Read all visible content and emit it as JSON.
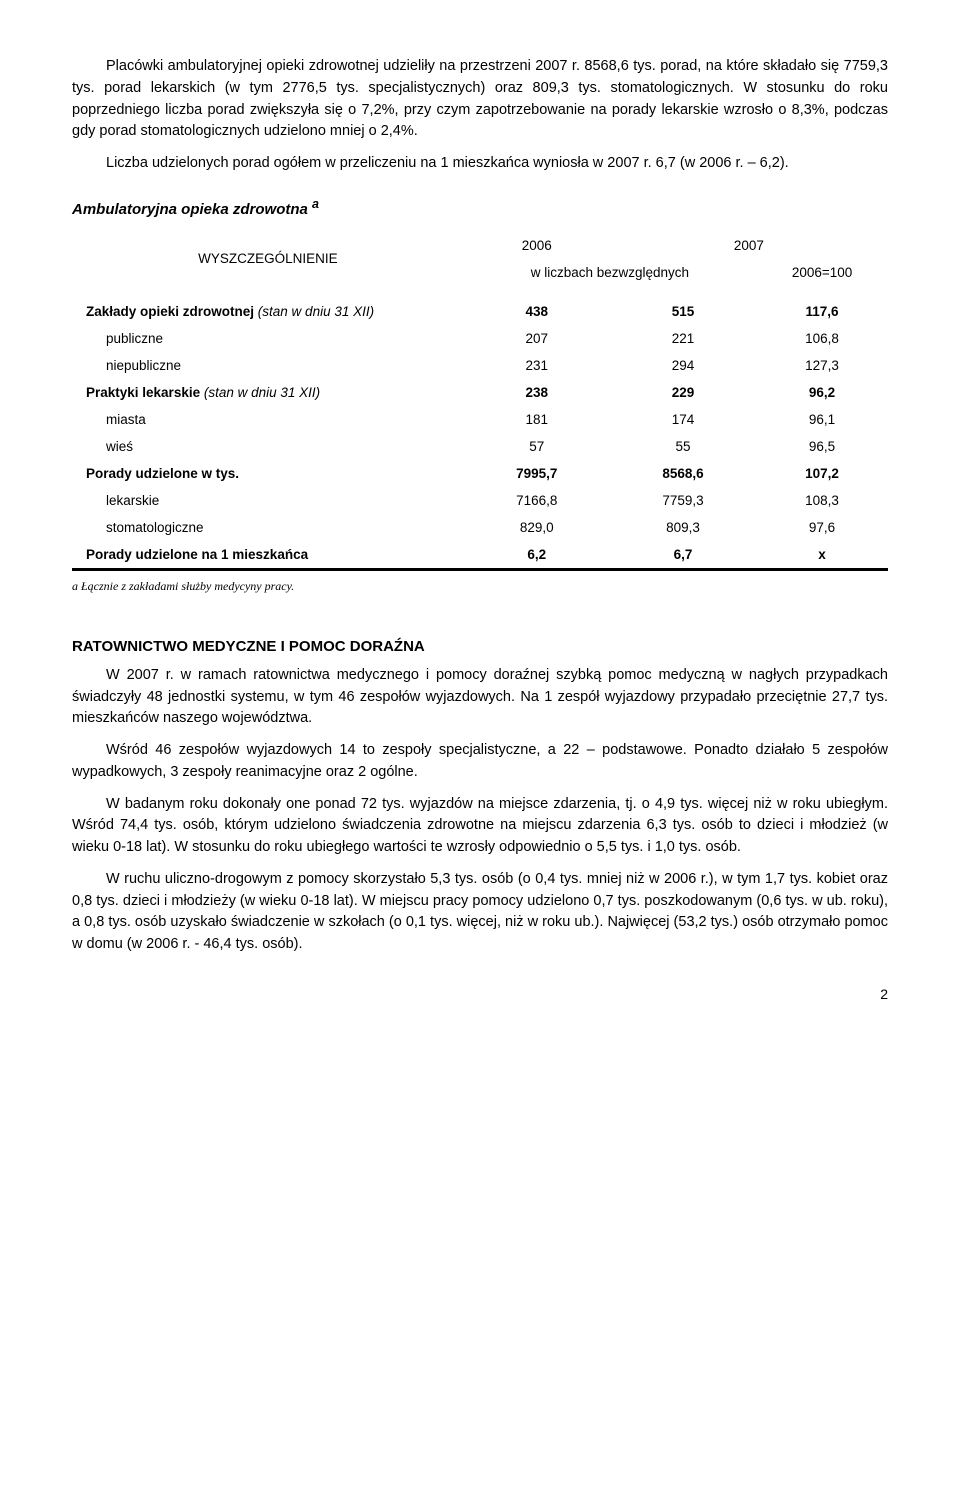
{
  "paragraphs_top": [
    "Placówki ambulatoryjnej opieki zdrowotnej udzieliły na przestrzeni 2007 r. 8568,6 tys. porad, na które składało się 7759,3 tys. porad lekarskich (w tym 2776,5 tys. specjalistycznych) oraz 809,3 tys. stomatologicznych. W stosunku do roku poprzedniego liczba porad zwiększyła się o 7,2%, przy czym zapotrzebowanie na porady lekarskie wzrosło o 8,3%, podczas gdy porad stomatologicznych udzielono mniej o 2,4%.",
    "Liczba udzielonych porad ogółem w przeliczeniu na 1 mieszkańca wyniosła w 2007 r. 6,7 (w 2006 r. – 6,2)."
  ],
  "table_section_title": "Ambulatoryjna opieka zdrowotna ",
  "table_superscript": "a",
  "table": {
    "header_col0": "WYSZCZEGÓLNIENIE",
    "header_years": [
      "2006",
      "2007"
    ],
    "header_sub_left": "w liczbach bezwzględnych",
    "header_sub_right": "2006=100",
    "rows": [
      {
        "label": "Zakłady opieki zdrowotnej (stan w dniu 31 XII)",
        "v": [
          "438",
          "515",
          "117,6"
        ],
        "bold": true,
        "italic_suffix": "(stan w dniu 31 XII)",
        "label_prefix": "Zakłady opieki zdrowotnej "
      },
      {
        "label": "publiczne",
        "v": [
          "207",
          "221",
          "106,8"
        ],
        "indent": 1
      },
      {
        "label": "niepubliczne",
        "v": [
          "231",
          "294",
          "127,3"
        ],
        "indent": 1
      },
      {
        "label": "Praktyki lekarskie (stan w dniu 31 XII)",
        "v": [
          "238",
          "229",
          "96,2"
        ],
        "bold": true,
        "italic_suffix": "(stan w dniu 31 XII)",
        "label_prefix": "Praktyki lekarskie "
      },
      {
        "label": "miasta",
        "v": [
          "181",
          "174",
          "96,1"
        ],
        "indent": 1
      },
      {
        "label": "wieś",
        "v": [
          "57",
          "55",
          "96,5"
        ],
        "indent": 1
      },
      {
        "label": "Porady udzielone w tys.",
        "v": [
          "7995,7",
          "8568,6",
          "107,2"
        ],
        "bold": true
      },
      {
        "label": "lekarskie",
        "v": [
          "7166,8",
          "7759,3",
          "108,3"
        ],
        "indent": 1
      },
      {
        "label": "stomatologiczne",
        "v": [
          "829,0",
          "809,3",
          "97,6"
        ],
        "indent": 1
      },
      {
        "label": "Porady udzielone na 1 mieszkańca",
        "v": [
          "6,2",
          "6,7",
          "x"
        ],
        "bold": true,
        "last": true
      }
    ]
  },
  "table_note": "a Łącznie z zakładami służby medycyny pracy.",
  "section2_title": "RATOWNICTWO MEDYCZNE I POMOC DORAŹNA",
  "paragraphs_bottom": [
    "W 2007 r. w ramach ratownictwa medycznego i pomocy doraźnej szybką pomoc medyczną w nagłych przypadkach świadczyły 48 jednostki systemu, w tym 46 zespołów wyjazdowych. Na 1 zespół wyjazdowy przypadało przeciętnie 27,7 tys. mieszkańców naszego województwa.",
    "Wśród 46 zespołów wyjazdowych 14 to zespoły specjalistyczne, a 22 – podstawowe. Ponadto działało 5 zespołów wypadkowych, 3 zespoły reanimacyjne oraz 2 ogólne.",
    "W badanym roku dokonały one ponad 72 tys. wyjazdów na miejsce zdarzenia, tj. o 4,9 tys. więcej niż w roku ubiegłym. Wśród 74,4 tys. osób, którym udzielono świadczenia zdrowotne na miejscu zdarzenia 6,3 tys. osób to dzieci i młodzież (w wieku 0-18 lat). W stosunku do roku ubiegłego wartości te wzrosły odpowiednio o 5,5 tys. i 1,0 tys. osób.",
    "W ruchu uliczno-drogowym z pomocy skorzystało 5,3 tys. osób (o 0,4 tys. mniej niż w 2006 r.), w tym 1,7 tys. kobiet oraz 0,8 tys. dzieci i młodzieży (w wieku 0-18 lat). W miejscu pracy pomocy udzielono 0,7 tys. poszkodowanym (0,6 tys. w ub. roku), a 0,8 tys. osób uzyskało świadczenie w szkołach (o 0,1 tys. więcej, niż w roku ub.). Najwięcej (53,2 tys.) osób otrzymało pomoc w domu (w 2006 r. - 46,4 tys. osób)."
  ],
  "page_number": "2"
}
